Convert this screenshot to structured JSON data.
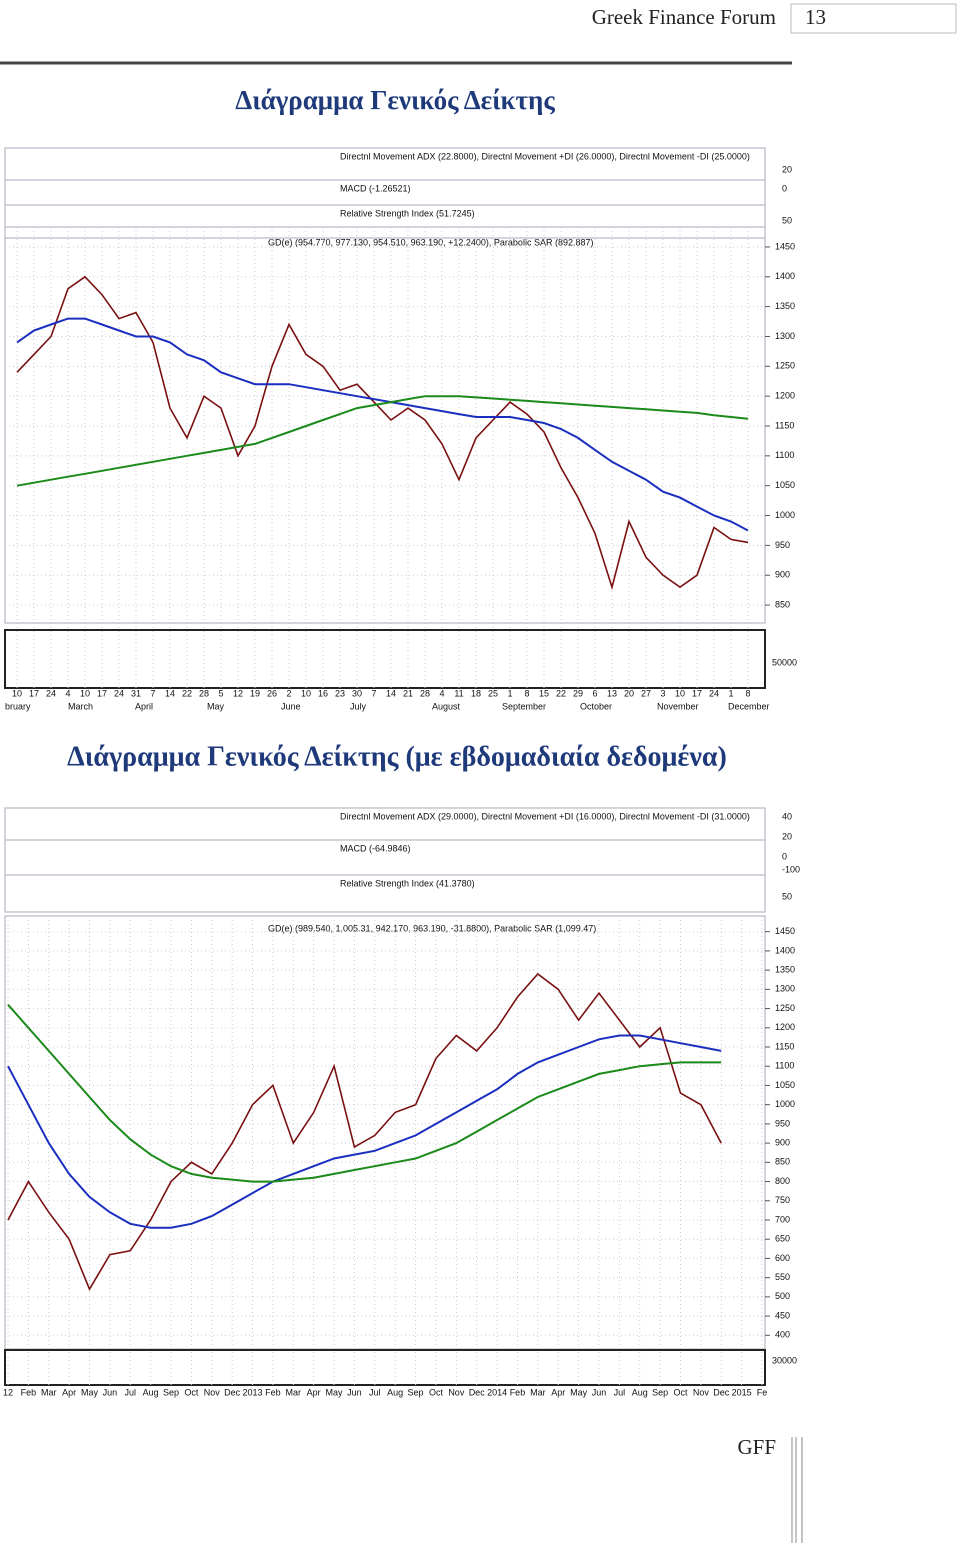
{
  "header": {
    "title": "Greek Finance Forum",
    "page": "13"
  },
  "sections": [
    {
      "title": "Διάγραμμα Γενικός Δείκτης",
      "chart": {
        "type": "line",
        "indicators": [
          "Directnl Movement ADX (22.8000), Directnl Movement +DI (26.0000), Directnl Movement -DI (25.0000)",
          "MACD (-1.26521)",
          "Relative Strength Index (51.7245)"
        ],
        "price_label": "GD(e) (954.770, 977.130, 954.510, 963.190, +12.2400), Parabolic SAR (892.887)",
        "indicator_ticks": [
          20,
          0,
          50
        ],
        "volume_tick": 50000,
        "categories": [
          "10",
          "17",
          "24",
          "4",
          "10",
          "17",
          "24",
          "31",
          "7",
          "14",
          "22",
          "28",
          "5",
          "12",
          "19",
          "26",
          "2",
          "10",
          "16",
          "23",
          "30",
          "7",
          "14",
          "21",
          "28",
          "4",
          "11",
          "18",
          "25",
          "1",
          "8",
          "15",
          "22",
          "29",
          "6",
          "13",
          "20",
          "27",
          "3",
          "10",
          "17",
          "24",
          "1",
          "8"
        ],
        "months": [
          "bruary",
          "March",
          "April",
          "May",
          "June",
          "July",
          "August",
          "September",
          "October",
          "November",
          "December"
        ],
        "ylim": [
          830,
          1470
        ],
        "yticks": [
          1450,
          1400,
          1350,
          1300,
          1250,
          1200,
          1150,
          1100,
          1050,
          1000,
          950,
          900,
          850
        ],
        "series": [
          {
            "color": "#7a1010",
            "values": [
              1240,
              1270,
              1300,
              1380,
              1400,
              1370,
              1330,
              1340,
              1290,
              1180,
              1130,
              1200,
              1180,
              1100,
              1150,
              1250,
              1320,
              1270,
              1250,
              1210,
              1220,
              1190,
              1160,
              1180,
              1160,
              1120,
              1060,
              1130,
              1160,
              1190,
              1170,
              1140,
              1080,
              1030,
              970,
              880,
              990,
              930,
              900,
              880,
              900,
              980,
              960,
              955
            ]
          },
          {
            "color": "#1a2fbf",
            "values": [
              1290,
              1310,
              1320,
              1330,
              1330,
              1320,
              1310,
              1300,
              1300,
              1290,
              1270,
              1260,
              1240,
              1230,
              1220,
              1220,
              1220,
              1215,
              1210,
              1205,
              1200,
              1195,
              1190,
              1185,
              1180,
              1175,
              1170,
              1165,
              1165,
              1165,
              1160,
              1155,
              1145,
              1130,
              1110,
              1090,
              1075,
              1060,
              1040,
              1030,
              1015,
              1000,
              990,
              975
            ]
          },
          {
            "color": "#1a8a1a",
            "values": [
              1050,
              1055,
              1060,
              1065,
              1070,
              1075,
              1080,
              1085,
              1090,
              1095,
              1100,
              1105,
              1110,
              1115,
              1120,
              1130,
              1140,
              1150,
              1160,
              1170,
              1180,
              1185,
              1190,
              1195,
              1200,
              1200,
              1200,
              1198,
              1196,
              1194,
              1192,
              1190,
              1188,
              1186,
              1184,
              1182,
              1180,
              1178,
              1176,
              1174,
              1172,
              1168,
              1165,
              1162
            ]
          }
        ]
      }
    },
    {
      "title": "Διάγραμμα Γενικός Δείκτης (με εβδομαδιαία δεδομένα)",
      "chart": {
        "type": "line",
        "indicators": [
          "Directnl Movement ADX (29.0000), Directnl Movement +DI (16.0000), Directnl Movement -DI (31.0000)",
          "MACD (-64.9846)",
          "Relative Strength Index (41.3780)"
        ],
        "price_label": "GD(e) (989.540, 1,005.31, 942.170, 963.190, -31.8800), Parabolic SAR (1,099.47)",
        "indicator_ticks": [
          40,
          20,
          0,
          -100,
          50
        ],
        "volume_tick": 30000,
        "categories": [
          "12",
          "Feb",
          "Mar",
          "Apr",
          "May",
          "Jun",
          "Jul",
          "Aug",
          "Sep",
          "Oct",
          "Nov",
          "Dec",
          "2013",
          "Feb",
          "Mar",
          "Apr",
          "May",
          "Jun",
          "Jul",
          "Aug",
          "Sep",
          "Oct",
          "Nov",
          "Dec",
          "2014",
          "Feb",
          "Mar",
          "Apr",
          "May",
          "Jun",
          "Jul",
          "Aug",
          "Sep",
          "Oct",
          "Nov",
          "Dec",
          "2015",
          "Fe"
        ],
        "months": [],
        "ylim": [
          380,
          1470
        ],
        "yticks": [
          1450,
          1400,
          1350,
          1300,
          1250,
          1200,
          1150,
          1100,
          1050,
          1000,
          950,
          900,
          850,
          800,
          750,
          700,
          650,
          600,
          550,
          500,
          450,
          400
        ],
        "series": [
          {
            "color": "#7a1010",
            "values": [
              700,
              800,
              720,
              650,
              520,
              610,
              620,
              700,
              800,
              850,
              820,
              900,
              1000,
              1050,
              900,
              980,
              1100,
              890,
              920,
              980,
              1000,
              1120,
              1180,
              1140,
              1200,
              1280,
              1340,
              1300,
              1220,
              1290,
              1220,
              1150,
              1200,
              1030,
              1000,
              900,
              null,
              null
            ]
          },
          {
            "color": "#1a2fbf",
            "values": [
              1100,
              1000,
              900,
              820,
              760,
              720,
              690,
              680,
              680,
              690,
              710,
              740,
              770,
              800,
              820,
              840,
              860,
              870,
              880,
              900,
              920,
              950,
              980,
              1010,
              1040,
              1080,
              1110,
              1130,
              1150,
              1170,
              1180,
              1180,
              1170,
              1160,
              1150,
              1140,
              null,
              null
            ]
          },
          {
            "color": "#1a8a1a",
            "values": [
              1260,
              1200,
              1140,
              1080,
              1020,
              960,
              910,
              870,
              840,
              820,
              810,
              805,
              800,
              800,
              805,
              810,
              820,
              830,
              840,
              850,
              860,
              880,
              900,
              930,
              960,
              990,
              1020,
              1040,
              1060,
              1080,
              1090,
              1100,
              1105,
              1110,
              1110,
              1110,
              null,
              null
            ]
          }
        ]
      }
    }
  ],
  "footer": "GFF"
}
